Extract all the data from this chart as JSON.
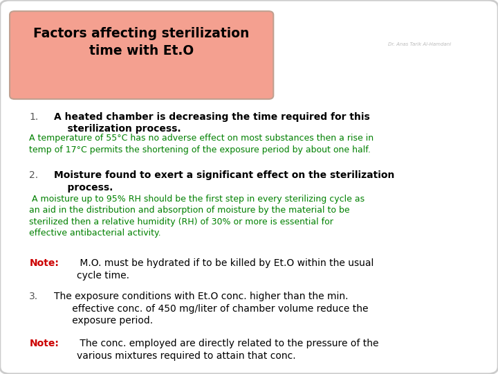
{
  "title_line1": "Factors affecting sterilization",
  "title_line2": "time with Et.O",
  "title_bg": "#F4A090",
  "title_border": "#C0A090",
  "slide_bg": "#FFFFFF",
  "slide_border": "#CCCCCC",
  "point1_bold": "A heated chamber is decreasing the time required for this\n    sterilization process.",
  "point1_green": "A temperature of 55°C has no adverse effect on most substances then a rise in\ntemp of 17°C permits the shortening of the exposure period by about one half.",
  "point2_bold": "Moisture found to exert a significant effect on the sterilization\n    process.",
  "point2_green": " A moisture up to 95% RH should be the first step in every sterilizing cycle as\nan aid in the distribution and absorption of moisture by the material to be\nsterilized then a relative humidity (RH) of 30% or more is essential for\neffective antibacterial activity.",
  "note2_bold": "Note:",
  "note2_regular": " M.O. must be hydrated if to be killed by Et.O within the usual\ncycle time.",
  "point3_regular": "The exposure conditions with Et.O conc. higher than the min.\n      effective conc. of 450 mg/liter of chamber volume reduce the\n      exposure period.",
  "note3_bold": "Note:",
  "note3_regular": " The conc. employed are directly related to the pressure of the\nvarious mixtures required to attain that conc.",
  "black_color": "#000000",
  "green_color": "#008000",
  "red_color": "#CC0000",
  "number_color": "#555555",
  "watermark_color": "#BBBBBB",
  "watermark_text": "Dr. Anas Tarik Al-Hamdani"
}
